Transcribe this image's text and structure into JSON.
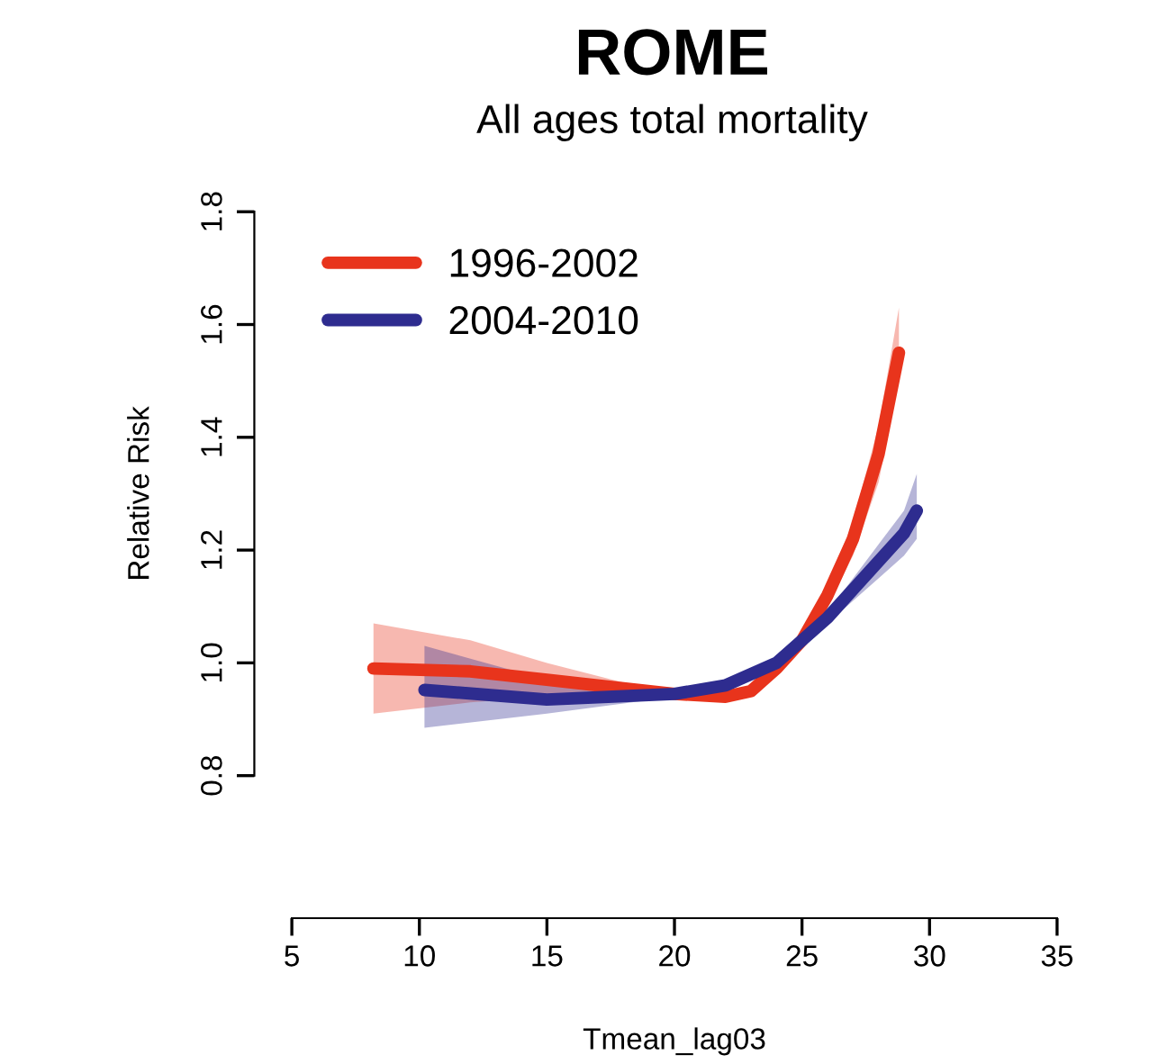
{
  "chart_data": {
    "type": "line",
    "title": "ROME",
    "subtitle": "All ages total mortality",
    "xlabel": "Tmean_lag03",
    "ylabel": "Relative Risk",
    "xlim": [
      5,
      35
    ],
    "ylim": [
      0.8,
      1.8
    ],
    "xticks": [
      5,
      10,
      15,
      20,
      25,
      30,
      35
    ],
    "yticks": [
      0.8,
      {
        "value": 1.0,
        "label": "1.0"
      },
      1.2,
      1.4,
      1.6,
      1.8
    ],
    "legend": "top left",
    "grid": false,
    "line_style": "solid",
    "marker": "none",
    "series": [
      {
        "name": "1996-2002",
        "color": "#e8341c",
        "x": [
          8.2,
          12,
          15,
          18,
          20,
          22,
          23,
          24,
          25,
          26,
          27,
          28,
          28.8
        ],
        "values": [
          0.99,
          0.985,
          0.97,
          0.955,
          0.945,
          0.94,
          0.95,
          0.99,
          1.04,
          1.12,
          1.22,
          1.37,
          1.55
        ],
        "lower": [
          0.91,
          0.93,
          0.94,
          0.945,
          0.94,
          0.93,
          0.94,
          0.98,
          1.03,
          1.1,
          1.19,
          1.32,
          1.5
        ],
        "upper": [
          1.07,
          1.04,
          1.0,
          0.965,
          0.95,
          0.95,
          0.96,
          1.0,
          1.05,
          1.14,
          1.25,
          1.42,
          1.63
        ]
      },
      {
        "name": "2004-2010",
        "color": "#2e2c8f",
        "x": [
          10.2,
          15,
          20,
          22,
          24,
          25,
          26,
          27,
          28,
          29,
          29.5
        ],
        "values": [
          0.952,
          0.935,
          0.945,
          0.96,
          1.0,
          1.04,
          1.08,
          1.13,
          1.18,
          1.23,
          1.27
        ],
        "lower": [
          0.885,
          0.91,
          0.94,
          0.955,
          0.99,
          1.03,
          1.07,
          1.11,
          1.15,
          1.19,
          1.22
        ],
        "upper": [
          1.03,
          0.97,
          0.95,
          0.965,
          1.01,
          1.05,
          1.09,
          1.15,
          1.21,
          1.27,
          1.335
        ]
      }
    ]
  }
}
